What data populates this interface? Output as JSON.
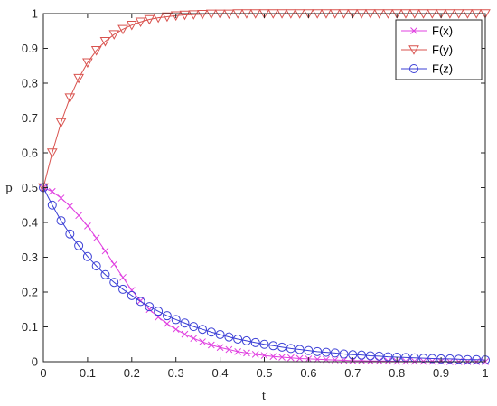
{
  "chart_data": {
    "type": "line",
    "xlabel": "t",
    "ylabel": "p",
    "xlim": [
      0,
      1
    ],
    "ylim": [
      0,
      1
    ],
    "x_ticks": [
      "0",
      "0.1",
      "0.2",
      "0.3",
      "0.4",
      "0.5",
      "0.6",
      "0.7",
      "0.8",
      "0.9",
      "1"
    ],
    "y_ticks": [
      "0",
      "0.1",
      "0.2",
      "0.3",
      "0.4",
      "0.5",
      "0.6",
      "0.7",
      "0.8",
      "0.9",
      "1"
    ],
    "grid": false,
    "legend_position": "top-right",
    "x": [
      0,
      0.02,
      0.04,
      0.06,
      0.08,
      0.1,
      0.12,
      0.14,
      0.16,
      0.18,
      0.2,
      0.22,
      0.24,
      0.26,
      0.28,
      0.3,
      0.32,
      0.34,
      0.36,
      0.38,
      0.4,
      0.42,
      0.44,
      0.46,
      0.48,
      0.5,
      0.52,
      0.54,
      0.56,
      0.58,
      0.6,
      0.62,
      0.64,
      0.66,
      0.68,
      0.7,
      0.72,
      0.74,
      0.76,
      0.78,
      0.8,
      0.82,
      0.84,
      0.86,
      0.88,
      0.9,
      0.92,
      0.94,
      0.96,
      0.98,
      1.0
    ],
    "series": [
      {
        "name": "F(x)",
        "color": "#e040e0",
        "marker": "x",
        "values": [
          0.5,
          0.489,
          0.47,
          0.447,
          0.42,
          0.39,
          0.355,
          0.318,
          0.28,
          0.242,
          0.205,
          0.175,
          0.15,
          0.128,
          0.109,
          0.093,
          0.079,
          0.067,
          0.057,
          0.048,
          0.041,
          0.035,
          0.029,
          0.025,
          0.021,
          0.018,
          0.015,
          0.013,
          0.011,
          0.009,
          0.008,
          0.007,
          0.006,
          0.005,
          0.004,
          0.003,
          0.003,
          0.002,
          0.002,
          0.002,
          0.001,
          0.001,
          0.001,
          0.001,
          0.001,
          0.001,
          0.0,
          0.0,
          0.0,
          0.0,
          0.0
        ]
      },
      {
        "name": "F(y)",
        "color": "#d9534f",
        "marker": "triangle-down",
        "values": [
          0.5,
          0.6,
          0.687,
          0.758,
          0.814,
          0.859,
          0.894,
          0.92,
          0.94,
          0.955,
          0.967,
          0.976,
          0.983,
          0.988,
          0.991,
          0.994,
          0.996,
          0.997,
          0.998,
          0.999,
          0.999,
          0.999,
          1.0,
          1.0,
          1.0,
          1.0,
          1.0,
          1.0,
          1.0,
          1.0,
          1.0,
          1.0,
          1.0,
          1.0,
          1.0,
          1.0,
          1.0,
          1.0,
          1.0,
          1.0,
          1.0,
          1.0,
          1.0,
          1.0,
          1.0,
          1.0,
          1.0,
          1.0,
          1.0,
          1.0,
          1.0
        ]
      },
      {
        "name": "F(z)",
        "color": "#3b3fd6",
        "marker": "circle",
        "values": [
          0.5,
          0.45,
          0.405,
          0.367,
          0.333,
          0.302,
          0.275,
          0.25,
          0.228,
          0.208,
          0.19,
          0.173,
          0.158,
          0.145,
          0.132,
          0.121,
          0.111,
          0.101,
          0.093,
          0.085,
          0.078,
          0.071,
          0.065,
          0.06,
          0.055,
          0.05,
          0.046,
          0.042,
          0.038,
          0.035,
          0.032,
          0.029,
          0.027,
          0.025,
          0.022,
          0.02,
          0.019,
          0.017,
          0.016,
          0.014,
          0.013,
          0.012,
          0.011,
          0.01,
          0.009,
          0.008,
          0.008,
          0.007,
          0.006,
          0.006,
          0.005
        ]
      }
    ]
  }
}
